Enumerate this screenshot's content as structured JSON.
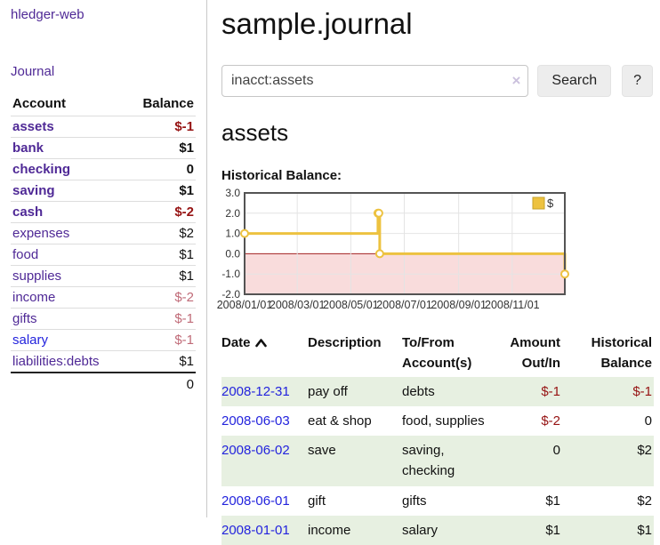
{
  "sidebar": {
    "app_title": "hledger-web",
    "journal_link": "Journal",
    "table": {
      "headers": {
        "account": "Account",
        "balance": "Balance"
      },
      "rows": [
        {
          "account": "assets",
          "balance": "$-1"
        },
        {
          "account": "bank",
          "balance": "$1"
        },
        {
          "account": "checking",
          "balance": "0"
        },
        {
          "account": "saving",
          "balance": "$1"
        },
        {
          "account": "cash",
          "balance": "$-2"
        },
        {
          "account": "expenses",
          "balance": "$2"
        },
        {
          "account": "food",
          "balance": "$1"
        },
        {
          "account": "supplies",
          "balance": "$1"
        },
        {
          "account": "income",
          "balance": "$-2"
        },
        {
          "account": "gifts",
          "balance": "$-1"
        },
        {
          "account": "salary",
          "balance": "$-1"
        },
        {
          "account": "liabilities:debts",
          "balance": "$1"
        }
      ],
      "total": "0"
    }
  },
  "header": {
    "title": "sample.journal"
  },
  "search": {
    "value": "inacct:assets",
    "clear_icon": "×",
    "button_label": "Search",
    "help_label": "?"
  },
  "register": {
    "account_title": "assets",
    "chart_label": "Historical Balance:",
    "table": {
      "headers": {
        "date": "Date",
        "description": "Description",
        "accounts": "To/From Account(s)",
        "amount": "Amount Out/In",
        "balance": "Historical Balance"
      },
      "rows": [
        {
          "date": "2008-12-31",
          "description": "pay off",
          "accounts": "debts",
          "amount": "$-1",
          "balance": "$-1"
        },
        {
          "date": "2008-06-03",
          "description": "eat & shop",
          "accounts": "food, supplies",
          "amount": "$-2",
          "balance": "0"
        },
        {
          "date": "2008-06-02",
          "description": "save",
          "accounts": "saving, checking",
          "amount": "0",
          "balance": "$2"
        },
        {
          "date": "2008-06-01",
          "description": "gift",
          "accounts": "gifts",
          "amount": "$1",
          "balance": "$2"
        },
        {
          "date": "2008-01-01",
          "description": "income",
          "accounts": "salary",
          "amount": "$1",
          "balance": "$1"
        }
      ]
    }
  },
  "chart_data": {
    "type": "line",
    "title": "Historical Balance:",
    "step": true,
    "series": [
      {
        "name": "$",
        "points": [
          {
            "date": "2008/01/01",
            "day": 0,
            "value": 1
          },
          {
            "date": "2008/06/01",
            "day": 152,
            "value": 2
          },
          {
            "date": "2008/06/02",
            "day": 153,
            "value": 2
          },
          {
            "date": "2008/06/03",
            "day": 154,
            "value": 0
          },
          {
            "date": "2008/12/31",
            "day": 365,
            "value": -1
          }
        ]
      }
    ],
    "x_ticks": [
      {
        "label": "2008/01/01",
        "day": 0
      },
      {
        "label": "2008/03/01",
        "day": 60
      },
      {
        "label": "2008/05/01",
        "day": 121
      },
      {
        "label": "2008/07/01",
        "day": 182
      },
      {
        "label": "2008/09/01",
        "day": 244
      },
      {
        "label": "2008/11/01",
        "day": 305
      }
    ],
    "y_ticks": [
      3.0,
      2.0,
      1.0,
      0.0,
      -1.0,
      -2.0
    ],
    "ylim": [
      -2,
      3
    ],
    "xlim_days": [
      0,
      365
    ],
    "grid": true,
    "legend": {
      "label": "$",
      "position": "top-right"
    },
    "colors": {
      "series": "#edc240",
      "negative_fill": "#f9dcdc",
      "zero_line": "#a22222",
      "grid": "#e4e4e4",
      "plot_border": "#545454"
    }
  },
  "colors": {
    "link_purple": "#4f2996",
    "link_blue": "#2323dd",
    "negative_amount": "#961313",
    "income_negative": "#c06b78",
    "row_stripe_green": "#e7f0e1"
  }
}
